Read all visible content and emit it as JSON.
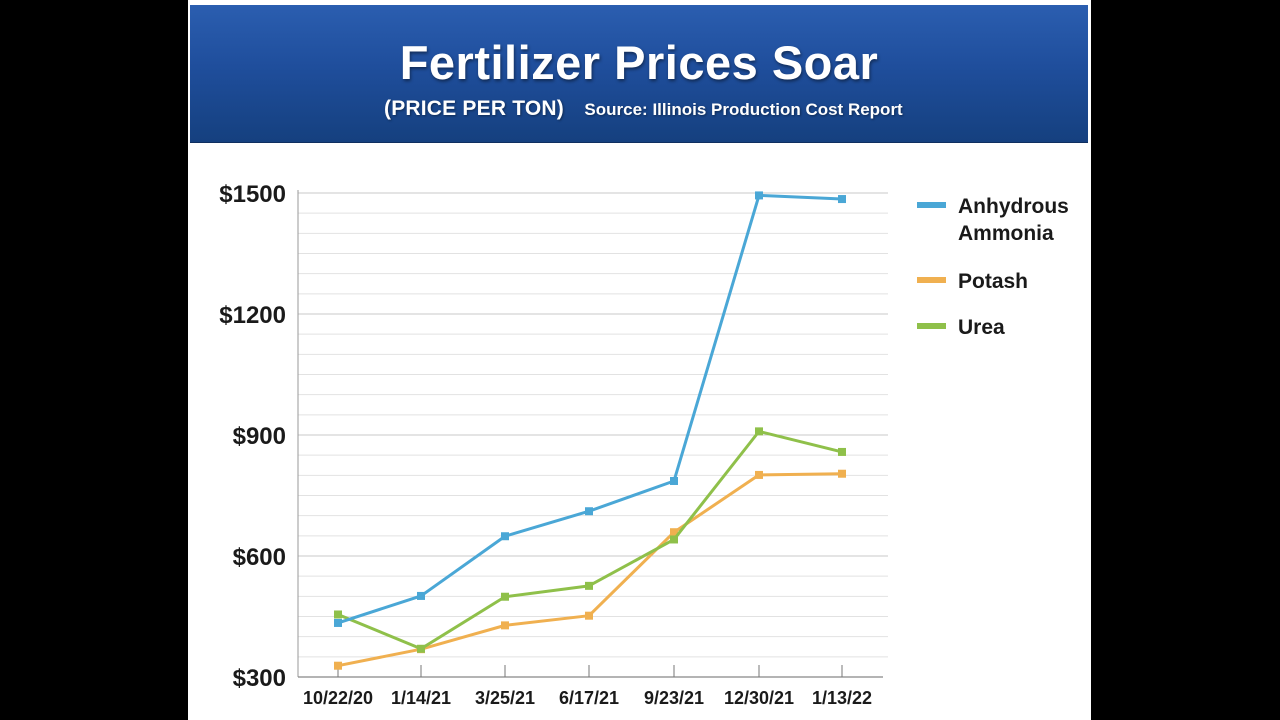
{
  "header": {
    "title": "Fertilizer Prices Soar",
    "subtitle": "(PRICE PER TON)",
    "source": "Source: Illinois Production Cost Report"
  },
  "colors": {
    "banner": "#1f4e9c",
    "anhydrous_ammonia": "#4aa7d6",
    "potash": "#f0b050",
    "urea": "#8fc04a",
    "grid": "#d8d8d8"
  },
  "chart_data": {
    "type": "line",
    "title": "Fertilizer Prices Soar",
    "subtitle": "(PRICE PER TON)",
    "categories": [
      "10/22/20",
      "1/14/21",
      "3/25/21",
      "6/17/21",
      "9/23/21",
      "12/30/21",
      "1/13/22"
    ],
    "ylim": [
      300,
      1500
    ],
    "yticks": [
      300,
      600,
      900,
      1200,
      1500
    ],
    "ytick_labels": [
      "$300",
      "$600",
      "$900",
      "$1200",
      "$1500"
    ],
    "grid": true,
    "legend_position": "right",
    "series": [
      {
        "name": "Anhydrous Ammonia",
        "legend_lines": [
          "Anhydrous",
          "Ammonia"
        ],
        "color": "#4aa7d6",
        "values": [
          434,
          501,
          649,
          711,
          786,
          1494,
          1485
        ]
      },
      {
        "name": "Potash",
        "legend_lines": [
          "Potash"
        ],
        "color": "#f0b050",
        "values": [
          328,
          369,
          428,
          452,
          659,
          801,
          804
        ]
      },
      {
        "name": "Urea",
        "legend_lines": [
          "Urea"
        ],
        "color": "#8fc04a",
        "values": [
          455,
          370,
          499,
          526,
          641,
          909,
          858
        ]
      }
    ]
  }
}
